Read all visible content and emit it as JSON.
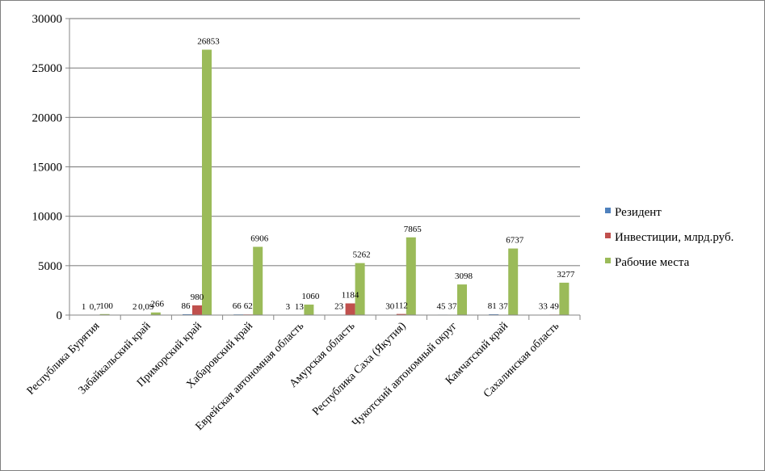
{
  "chart_data": {
    "type": "bar",
    "categories": [
      "Республика Бурятия",
      "Забайкальский край",
      "Приморский край",
      "Хабаровский край",
      "Еврейская автономная область",
      "Амурская область",
      "Республика Саха (Якутия)",
      "Чукотский автономный округ",
      "Камчатский край",
      "Сахалинская область"
    ],
    "series": [
      {
        "name": "Резидент",
        "color": "#4f81bd",
        "values": [
          1,
          2,
          86,
          66,
          3,
          23,
          30,
          45,
          81,
          33
        ],
        "labels": [
          "1",
          "2",
          "86",
          "66",
          "3",
          "23",
          "30",
          "45",
          "81",
          "33"
        ]
      },
      {
        "name": "Инвестиции, млрд.руб.",
        "color": "#c0504d",
        "values": [
          0.7,
          0.09,
          980,
          62,
          13,
          1184,
          112,
          37,
          37,
          49
        ],
        "labels": [
          "0,7",
          "0,09",
          "980",
          "62",
          "13",
          "1184",
          "112",
          "37",
          "37",
          "49"
        ]
      },
      {
        "name": "Рабочие места",
        "color": "#9bbb59",
        "values": [
          100,
          266,
          26853,
          6906,
          1060,
          5262,
          7865,
          3098,
          6737,
          3277
        ],
        "labels": [
          "100",
          "266",
          "26853",
          "6906",
          "1060",
          "5262",
          "7865",
          "3098",
          "6737",
          "3277"
        ]
      }
    ],
    "ylim": [
      0,
      30000
    ],
    "yticks": [
      0,
      5000,
      10000,
      15000,
      20000,
      25000,
      30000
    ],
    "grid": true,
    "legend_position": "right"
  }
}
